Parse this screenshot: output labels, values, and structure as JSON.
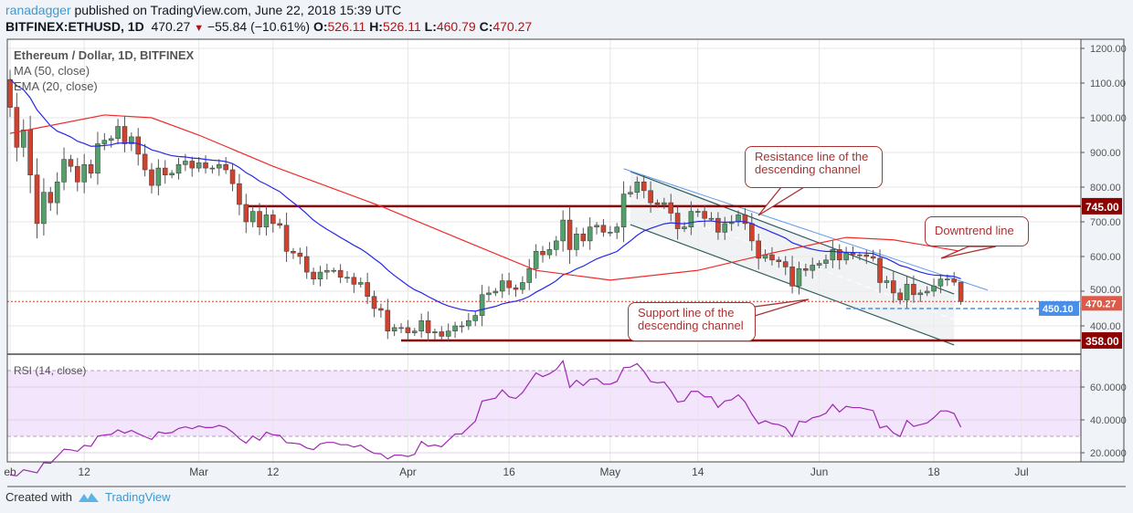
{
  "header": {
    "user": "ranadagger",
    "published": " published on TradingView.com, June 22, 2018 15:39 UTC",
    "symbol": "BITFINEX:ETHUSD, 1D",
    "last": "470.27",
    "change": "−55.84 (−10.61%)",
    "o_label": "O:",
    "o": "526.11",
    "h_label": "H:",
    "h": "526.11",
    "l_label": "L:",
    "l": "460.79",
    "c_label": "C:",
    "c": "470.27"
  },
  "legend": {
    "title": "Ethereum / Dollar, 1D, BITFINEX",
    "ma": "MA (50, close)",
    "ema": "EMA (20, close)",
    "rsi": "RSI (14, close)"
  },
  "footer": {
    "created": "Created with",
    "brand": "TradingView",
    "icon": "tradingview-logo-icon"
  },
  "colors": {
    "up": "#53a06a",
    "down": "#d0412e",
    "ema": "#2727e8",
    "ma": "#f02a2a",
    "rsi": "#9c27b0",
    "rsi_band": "#f3e5fb",
    "level": "#8b0000",
    "last_badge": "#dc5a47",
    "support_badge": "#4a8ee8",
    "channel": "#2f5d5d",
    "downtrend": "#5b9bf0"
  },
  "chart_data": {
    "type": "candlestick",
    "start_date": "2018-02-01",
    "first_open": 1110,
    "closes": [
      1030,
      915,
      965,
      835,
      695,
      785,
      755,
      815,
      880,
      860,
      815,
      865,
      840,
      925,
      935,
      940,
      975,
      925,
      945,
      895,
      850,
      805,
      855,
      835,
      840,
      865,
      875,
      855,
      870,
      855,
      855,
      865,
      850,
      810,
      750,
      700,
      730,
      685,
      720,
      695,
      690,
      615,
      610,
      600,
      555,
      535,
      555,
      560,
      560,
      540,
      540,
      520,
      525,
      485,
      450,
      445,
      385,
      395,
      395,
      380,
      385,
      415,
      380,
      383,
      370,
      385,
      400,
      400,
      415,
      430,
      490,
      495,
      500,
      530,
      510,
      505,
      525,
      565,
      615,
      605,
      620,
      645,
      705,
      620,
      665,
      645,
      685,
      690,
      670,
      670,
      685,
      780,
      785,
      815,
      790,
      755,
      750,
      755,
      725,
      680,
      685,
      730,
      730,
      710,
      710,
      670,
      695,
      700,
      720,
      695,
      645,
      595,
      605,
      590,
      585,
      570,
      515,
      565,
      560,
      575,
      580,
      590,
      620,
      590,
      610,
      605,
      605,
      600,
      595,
      525,
      530,
      495,
      475,
      520,
      490,
      495,
      500,
      515,
      535,
      535,
      526.11,
      470.27
    ],
    "last_bar": {
      "open": 526.11,
      "high": 526.11,
      "low": 460.79,
      "close": 470.27
    },
    "ma50": [
      [
        "2018-02-01",
        955
      ],
      [
        "2018-02-15",
        1008
      ],
      [
        "2018-02-22",
        1000
      ],
      [
        "2018-03-01",
        950
      ],
      [
        "2018-03-12",
        860
      ],
      [
        "2018-03-28",
        745
      ],
      [
        "2018-04-10",
        640
      ],
      [
        "2018-04-20",
        560
      ],
      [
        "2018-05-01",
        532
      ],
      [
        "2018-05-14",
        560
      ],
      [
        "2018-05-25",
        610
      ],
      [
        "2018-06-05",
        655
      ],
      [
        "2018-06-12",
        648
      ],
      [
        "2018-06-22",
        615
      ]
    ],
    "ema_period": 20,
    "rsi_period": 14,
    "price_axis": {
      "min": 330,
      "max": 1225,
      "ticks": [
        "1200.00",
        "1100.00",
        "1000.00",
        "900.00",
        "800.00",
        "700.00",
        "600.00",
        "500.00",
        "400.00"
      ]
    },
    "rsi_axis": {
      "ticks": [
        "60.0000",
        "40.0000",
        "20.0000"
      ],
      "band": [
        30,
        70
      ]
    },
    "x_ticks": [
      [
        "2018-02-01",
        "eb"
      ],
      [
        "2018-02-12",
        "12"
      ],
      [
        "2018-03-01",
        "Mar"
      ],
      [
        "2018-03-12",
        "12"
      ],
      [
        "2018-04-01",
        "Apr"
      ],
      [
        "2018-04-16",
        "16"
      ],
      [
        "2018-05-01",
        "May"
      ],
      [
        "2018-05-14",
        "14"
      ],
      [
        "2018-06-01",
        "Jun"
      ],
      [
        "2018-06-18",
        "18"
      ],
      [
        "2018-07-01",
        "Jul"
      ]
    ],
    "levels": [
      {
        "price": 745,
        "label": "745.00",
        "from": "2018-03-08"
      },
      {
        "price": 358,
        "label": "358.00",
        "from": "2018-03-31"
      }
    ],
    "support_dashed": {
      "price": 450.1,
      "label": "450.10",
      "from": "2018-06-05"
    },
    "last_price_label": "470.27",
    "channel": {
      "upper": [
        [
          "2018-05-04",
          845
        ],
        [
          "2018-06-21",
          492
        ]
      ],
      "lower": [
        [
          "2018-05-04",
          692
        ],
        [
          "2018-06-21",
          345
        ]
      ]
    },
    "downtrend": [
      [
        "2018-05-03",
        853
      ],
      [
        "2018-06-26",
        503
      ]
    ],
    "annotations": {
      "resistance": "Resistance line of the descending channel",
      "downtrend": "Downtrend line",
      "support": "Support line of the descending channel"
    }
  }
}
